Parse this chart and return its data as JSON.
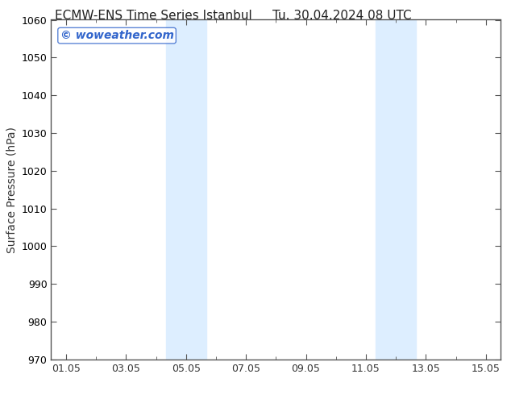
{
  "title_left": "ECMW-ENS Time Series Istanbul",
  "title_right": "Tu. 30.04.2024 08 UTC",
  "ylabel": "Surface Pressure (hPa)",
  "ylim": [
    970,
    1060
  ],
  "ytick_major_interval": 10,
  "background_color": "#ffffff",
  "plot_bg_color": "#ffffff",
  "watermark": "© woweather.com",
  "watermark_color": "#3366cc",
  "shade_regions": [
    {
      "x_start": 4.333,
      "x_end": 5.667
    },
    {
      "x_start": 11.333,
      "x_end": 12.667
    }
  ],
  "shade_color": "#ddeeff",
  "x_ticks_major": [
    1,
    3,
    5,
    7,
    9,
    11,
    13,
    15
  ],
  "x_tick_labels": [
    "01.05",
    "03.05",
    "05.05",
    "07.05",
    "09.05",
    "11.05",
    "13.05",
    "15.05"
  ],
  "xlim": [
    0.5,
    15.5
  ],
  "title_fontsize": 11,
  "tick_fontsize": 9,
  "ylabel_fontsize": 10,
  "watermark_fontsize": 10,
  "spine_color": "#555555",
  "tick_color": "#555555"
}
